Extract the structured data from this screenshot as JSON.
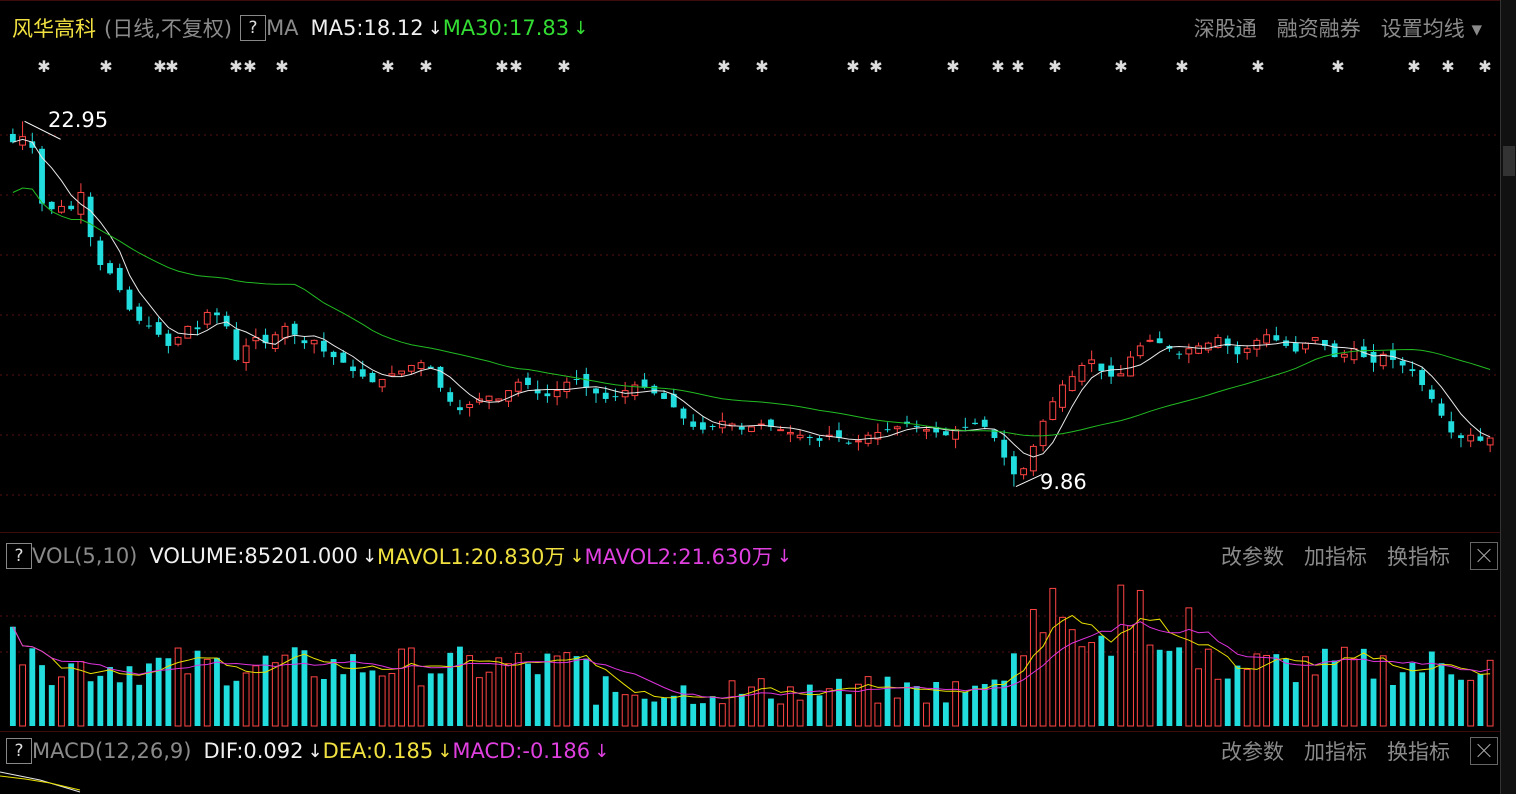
{
  "header": {
    "stock_name": "风华高科",
    "period": "(日线,不复权)",
    "help": "?",
    "ma_label": "MA",
    "ma5": "MA5:18.12",
    "ma30": "MA30:17.83",
    "arrow": "↓",
    "links": [
      "深股通",
      "融资融券",
      "设置均线 ▾"
    ]
  },
  "vol_header": {
    "help": "?",
    "label": "VOL(5,10)",
    "volume": "VOLUME:85201.000",
    "mavol1": "MAVOL1:20.830万",
    "mavol2": "MAVOL2:21.630万",
    "arrow": "↓",
    "links": [
      "改参数",
      "加指标",
      "换指标"
    ]
  },
  "macd_header": {
    "help": "?",
    "label": "MACD(12,26,9)",
    "dif": "DIF:0.092",
    "dea": "DEA:0.185",
    "macd": "MACD:-0.186",
    "arrow": "↓",
    "links": [
      "改参数",
      "加指标",
      "换指标"
    ]
  },
  "colors": {
    "up": "#ff4444",
    "down": "#22dddd",
    "ma5": "#e8e8e8",
    "ma30": "#22bb22",
    "mavol1": "#e8e000",
    "mavol2": "#dd33dd",
    "grid": "#5a1010"
  },
  "chart_data": {
    "type": "candlestick",
    "high_label": "22.95",
    "low_label": "9.86",
    "ylim": [
      9.2,
      24.0
    ],
    "closes": [
      22.2,
      22.4,
      22.0,
      20.0,
      19.8,
      19.9,
      19.8,
      20.4,
      18.8,
      17.8,
      17.5,
      16.9,
      16.2,
      15.8,
      15.6,
      15.3,
      14.9,
      15.2,
      15.6,
      15.5,
      16.1,
      16.0,
      15.6,
      14.4,
      14.9,
      15.2,
      15.0,
      15.3,
      15.6,
      15.3,
      15.0,
      15.1,
      14.7,
      14.5,
      14.3,
      14.0,
      13.8,
      13.6,
      13.7,
      13.9,
      14.0,
      14.2,
      14.3,
      14.1,
      13.4,
      12.9,
      12.6,
      12.8,
      13.0,
      13.1,
      13.0,
      13.3,
      13.6,
      13.5,
      13.2,
      13.1,
      13.3,
      13.6,
      13.7,
      13.4,
      13.2,
      13.0,
      13.1,
      13.3,
      13.5,
      13.4,
      13.2,
      13.0,
      12.7,
      12.3,
      12.0,
      11.9,
      12.0,
      12.2,
      12.1,
      11.9,
      12.0,
      12.1,
      12.0,
      11.9,
      11.8,
      11.7,
      11.6,
      11.5,
      11.7,
      11.6,
      11.4,
      11.5,
      11.7,
      11.8,
      11.9,
      12.0,
      12.1,
      12.0,
      11.9,
      11.8,
      11.7,
      11.9,
      12.0,
      12.1,
      12.0,
      11.6,
      10.9,
      10.3,
      10.5,
      11.3,
      12.2,
      12.9,
      13.5,
      13.8,
      14.2,
      14.4,
      14.0,
      13.8,
      13.9,
      14.5,
      14.9,
      15.1,
      15.0,
      14.8,
      14.6,
      14.8,
      14.9,
      15.0,
      15.2,
      14.9,
      14.6,
      14.8,
      15.1,
      15.3,
      15.1,
      14.9,
      14.7,
      15.0,
      15.2,
      14.9,
      14.5,
      14.6,
      14.8,
      14.5,
      14.3,
      14.6,
      14.4,
      14.2,
      14.0,
      13.5,
      13.0,
      12.4,
      11.8,
      11.6,
      11.7,
      11.5,
      11.6
    ]
  }
}
